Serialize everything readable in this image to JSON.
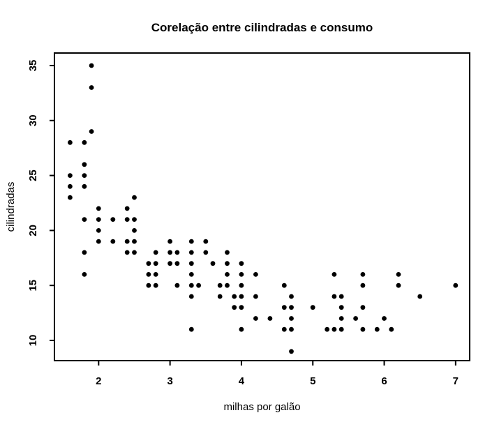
{
  "figure": {
    "background": "#ffffff",
    "foreground": "#000000"
  },
  "chart_data": {
    "type": "scatter",
    "title": "Corelação entre cilindradas e consumo",
    "xlabel": "milhas por galão",
    "ylabel": "cilindradas",
    "x_ticks": [
      2,
      3,
      4,
      5,
      6,
      7
    ],
    "y_ticks": [
      10,
      15,
      20,
      25,
      30,
      35
    ],
    "xlim": [
      1.381,
      7.197
    ],
    "ylim": [
      8.16,
      36.14
    ],
    "grid": false,
    "legend": "none",
    "point_color": "#000000",
    "point_shape": "filled-circle",
    "points": [
      [
        1.9,
        35
      ],
      [
        1.9,
        33
      ],
      [
        1.9,
        29
      ],
      [
        1.6,
        28
      ],
      [
        1.8,
        28
      ],
      [
        1.8,
        26
      ],
      [
        1.6,
        25
      ],
      [
        1.8,
        25
      ],
      [
        1.6,
        24
      ],
      [
        1.8,
        24
      ],
      [
        1.6,
        23
      ],
      [
        2.5,
        23
      ],
      [
        2.0,
        22
      ],
      [
        2.4,
        22
      ],
      [
        1.8,
        21
      ],
      [
        2.0,
        21
      ],
      [
        2.2,
        21
      ],
      [
        2.4,
        21
      ],
      [
        2.5,
        21
      ],
      [
        2.0,
        20
      ],
      [
        2.5,
        20
      ],
      [
        2.0,
        19
      ],
      [
        2.2,
        19
      ],
      [
        2.4,
        19
      ],
      [
        2.5,
        19
      ],
      [
        3.0,
        19
      ],
      [
        3.3,
        19
      ],
      [
        3.5,
        19
      ],
      [
        1.8,
        18
      ],
      [
        2.4,
        18
      ],
      [
        2.5,
        18
      ],
      [
        2.8,
        18
      ],
      [
        3.0,
        18
      ],
      [
        3.1,
        18
      ],
      [
        3.3,
        18
      ],
      [
        3.5,
        18
      ],
      [
        3.8,
        18
      ],
      [
        2.7,
        17
      ],
      [
        2.8,
        17
      ],
      [
        3.0,
        17
      ],
      [
        3.1,
        17
      ],
      [
        3.3,
        17
      ],
      [
        3.6,
        17
      ],
      [
        3.8,
        17
      ],
      [
        4.0,
        17
      ],
      [
        1.8,
        16
      ],
      [
        2.7,
        16
      ],
      [
        2.8,
        16
      ],
      [
        3.3,
        16
      ],
      [
        3.8,
        16
      ],
      [
        4.0,
        16
      ],
      [
        4.2,
        16
      ],
      [
        5.3,
        16
      ],
      [
        5.7,
        16
      ],
      [
        6.2,
        16
      ],
      [
        2.7,
        15
      ],
      [
        2.8,
        15
      ],
      [
        3.1,
        15
      ],
      [
        3.3,
        15
      ],
      [
        3.4,
        15
      ],
      [
        3.7,
        15
      ],
      [
        3.8,
        15
      ],
      [
        4.0,
        15
      ],
      [
        4.6,
        15
      ],
      [
        5.7,
        15
      ],
      [
        6.2,
        15
      ],
      [
        7.0,
        15
      ],
      [
        3.3,
        14
      ],
      [
        3.7,
        14
      ],
      [
        3.9,
        14
      ],
      [
        4.0,
        14
      ],
      [
        4.2,
        14
      ],
      [
        4.7,
        14
      ],
      [
        5.3,
        14
      ],
      [
        5.4,
        14
      ],
      [
        6.5,
        14
      ],
      [
        3.9,
        13
      ],
      [
        4.0,
        13
      ],
      [
        4.6,
        13
      ],
      [
        4.7,
        13
      ],
      [
        5.0,
        13
      ],
      [
        5.4,
        13
      ],
      [
        5.7,
        13
      ],
      [
        4.2,
        12
      ],
      [
        4.4,
        12
      ],
      [
        4.7,
        12
      ],
      [
        5.4,
        12
      ],
      [
        5.6,
        12
      ],
      [
        6.0,
        12
      ],
      [
        3.3,
        11
      ],
      [
        4.0,
        11
      ],
      [
        4.6,
        11
      ],
      [
        4.7,
        11
      ],
      [
        5.2,
        11
      ],
      [
        5.3,
        11
      ],
      [
        5.4,
        11
      ],
      [
        5.7,
        11
      ],
      [
        5.9,
        11
      ],
      [
        6.1,
        11
      ],
      [
        4.7,
        9
      ]
    ]
  }
}
